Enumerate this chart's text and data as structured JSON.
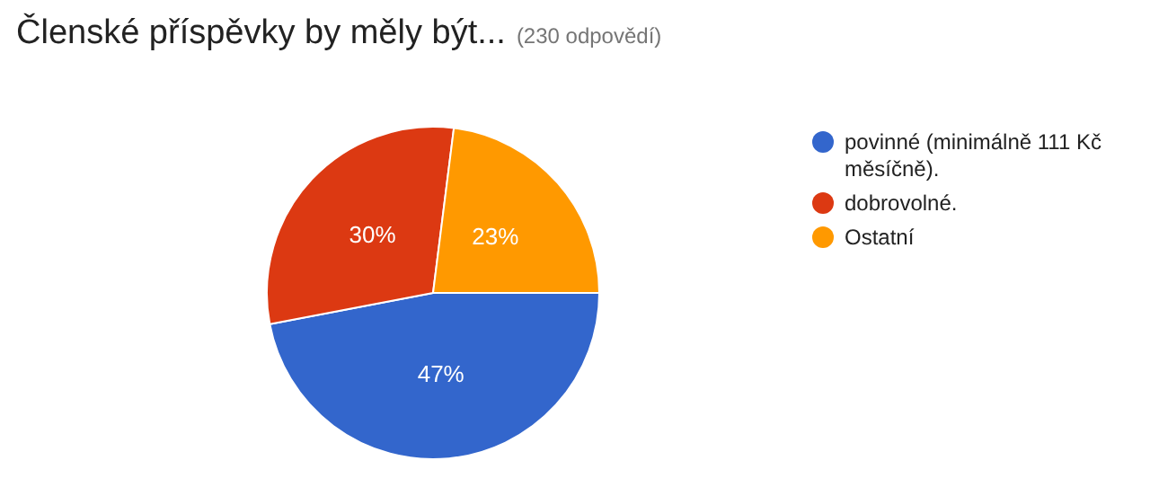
{
  "chart_data": {
    "type": "pie",
    "title": "Členské příspěvky by měly být...",
    "subtitle": "(230 odpovědí)",
    "categories": [
      "povinné (minimálně 111 Kč měsíčně).",
      "dobrovolné.",
      "Ostatní"
    ],
    "values": [
      47,
      30,
      23
    ],
    "colors": [
      "#3366cc",
      "#dc3912",
      "#ff9900"
    ],
    "value_labels": [
      "47%",
      "30%",
      "23%"
    ],
    "legend": "right"
  }
}
